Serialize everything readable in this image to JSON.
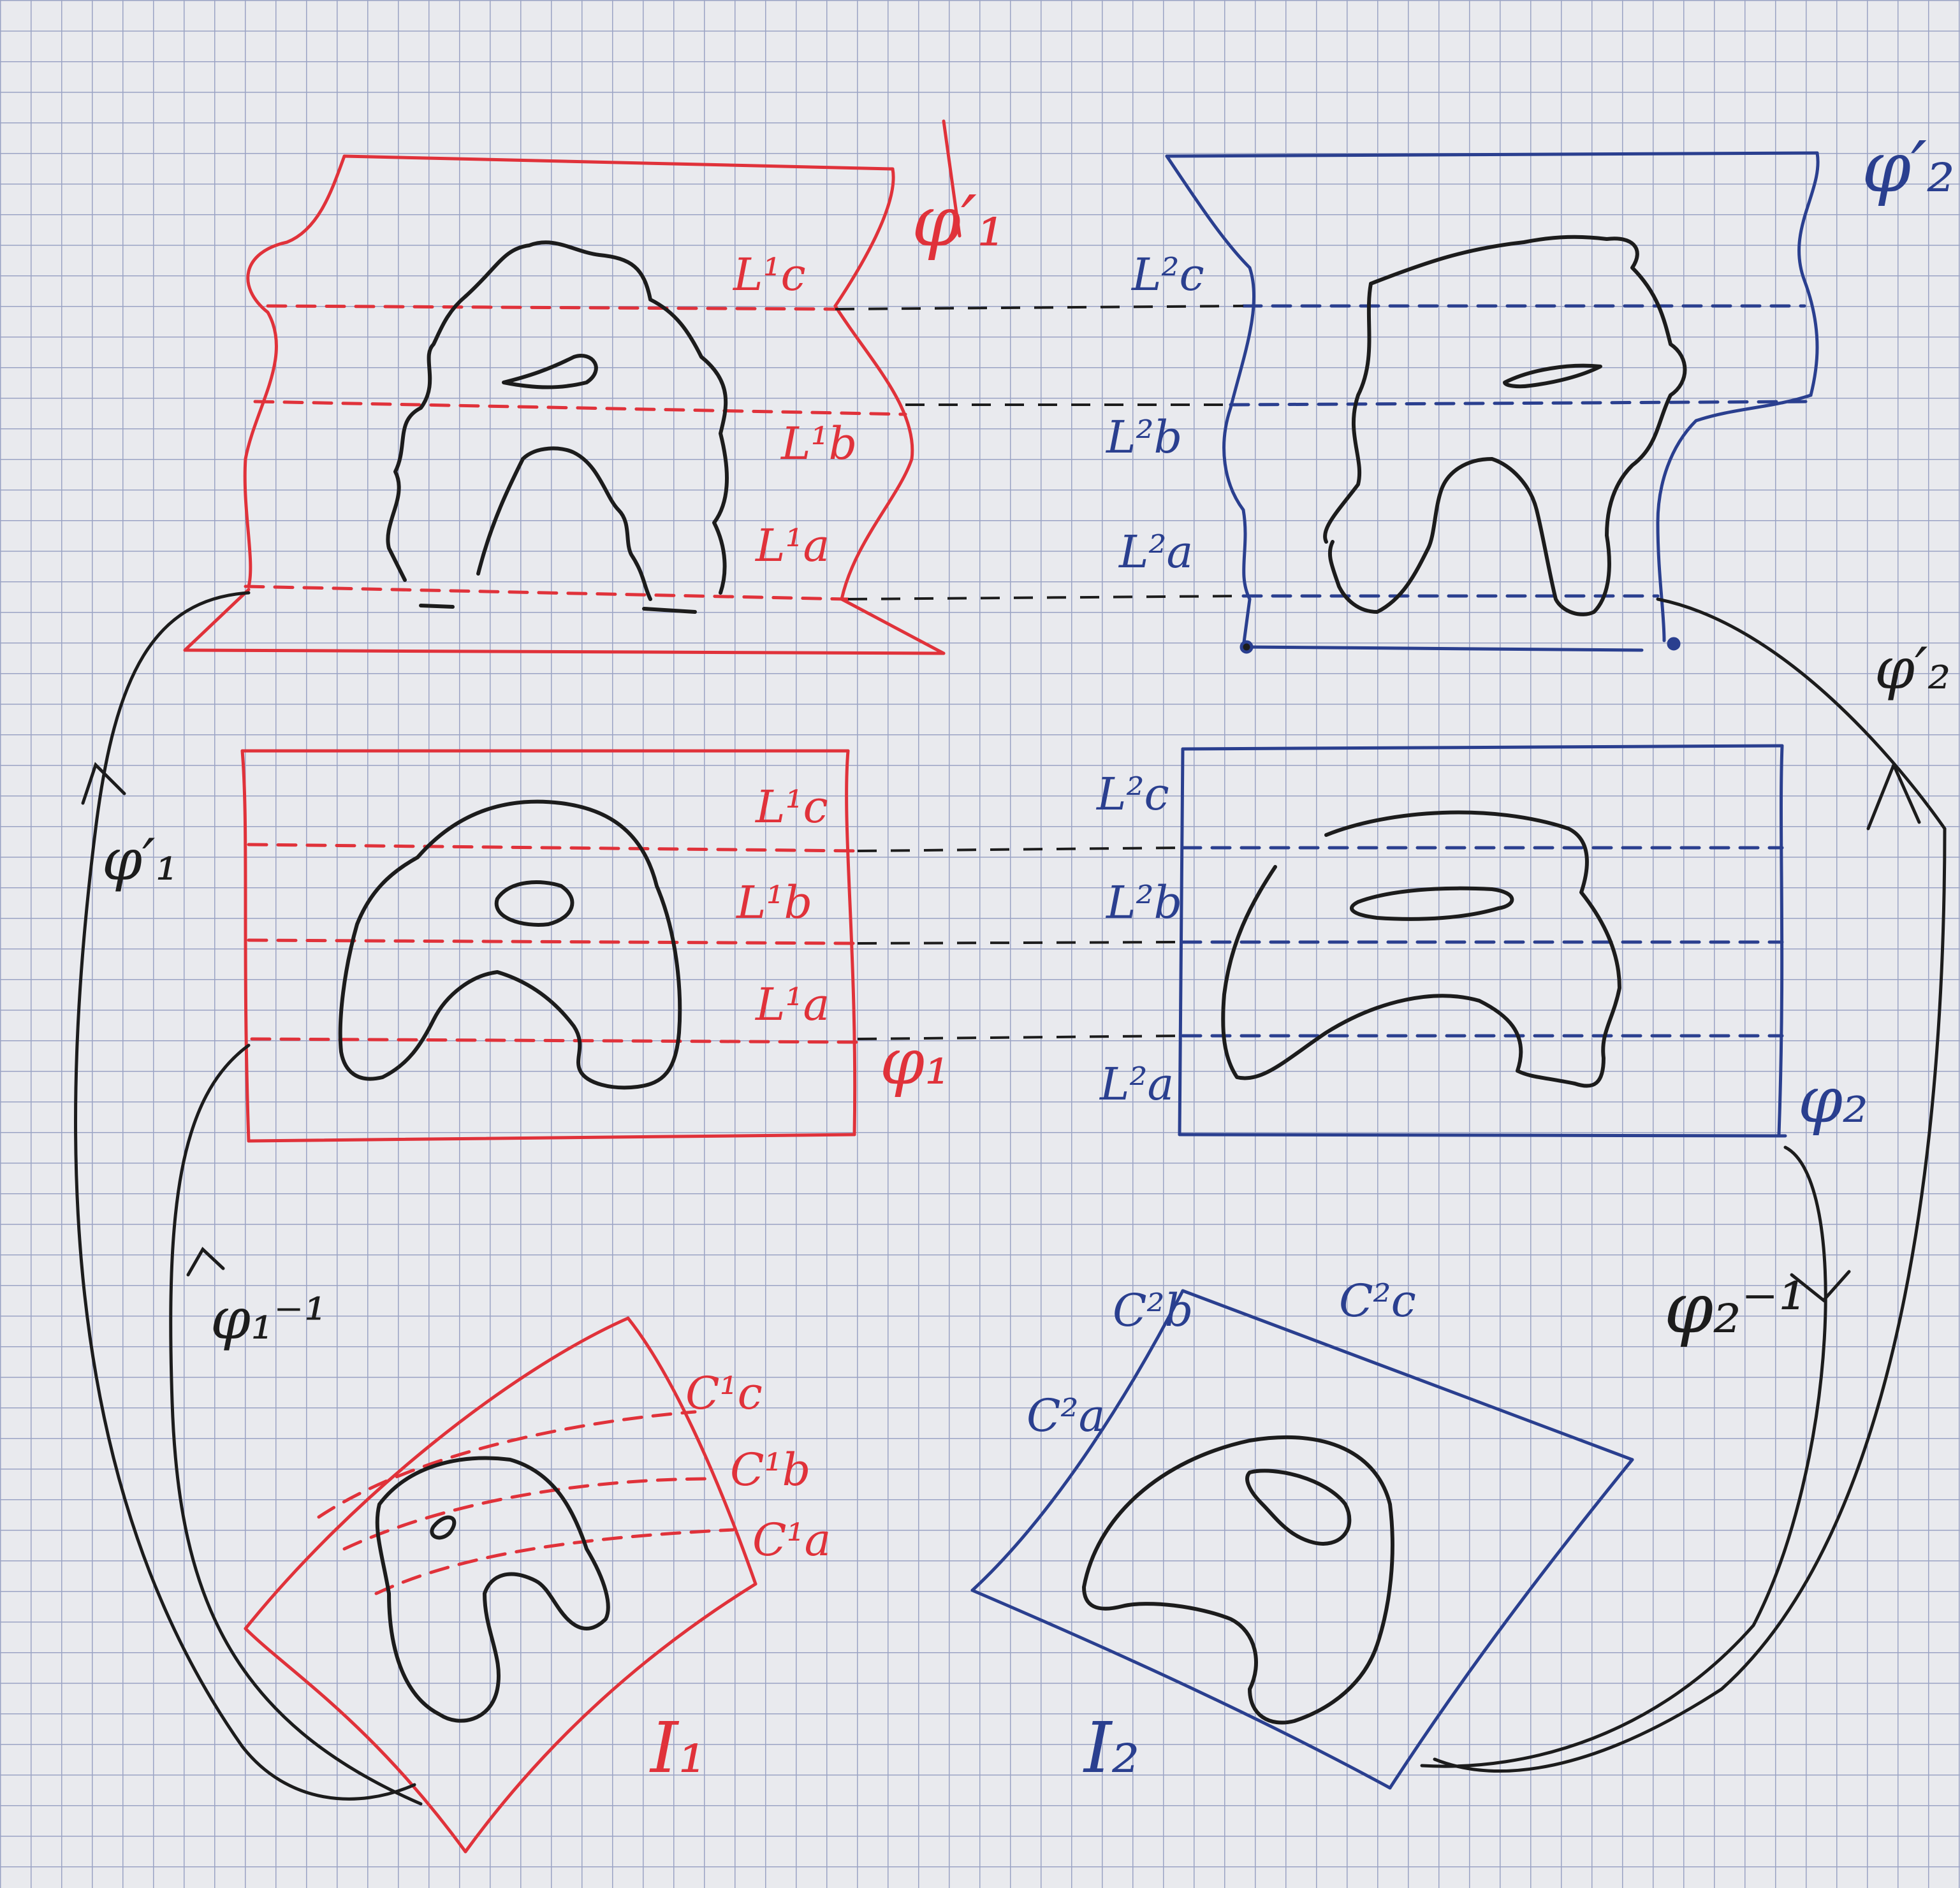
{
  "colors": {
    "paper": "#e9eaee",
    "grid": "#9aa3c4",
    "red_ink": "#e0323a",
    "blue_ink": "#2a3f8f",
    "black_ink": "#1c1c1c"
  },
  "labels": {
    "phi1_prime_top": "φ′₁",
    "phi2_prime_top": "φ′₂",
    "phi1_prime_left": "φ′₁",
    "phi2_prime_right": "φ′₂",
    "phi1": "φ₁",
    "phi2": "φ₂",
    "phi1_inv": "φ₁⁻¹",
    "phi2_inv": "φ₂⁻¹",
    "I1": "I₁",
    "I2": "I₂",
    "red_top": {
      "Lc": "L¹c",
      "Lb": "L¹b",
      "La": "L¹a"
    },
    "blue_top": {
      "Lc": "L²c",
      "Lb": "L²b",
      "La": "L²a"
    },
    "red_mid": {
      "Lc": "L¹c",
      "Lb": "L¹b",
      "La": "L¹a"
    },
    "blue_mid": {
      "Lc": "L²c",
      "Lb": "L²b",
      "La": "L²a"
    },
    "red_bottom": {
      "Cc": "C¹c",
      "Cb": "C¹b",
      "Ca": "C¹a"
    },
    "blue_bottom": {
      "Cb": "C²b",
      "Cc": "C²c",
      "Ca": "C²a"
    }
  }
}
